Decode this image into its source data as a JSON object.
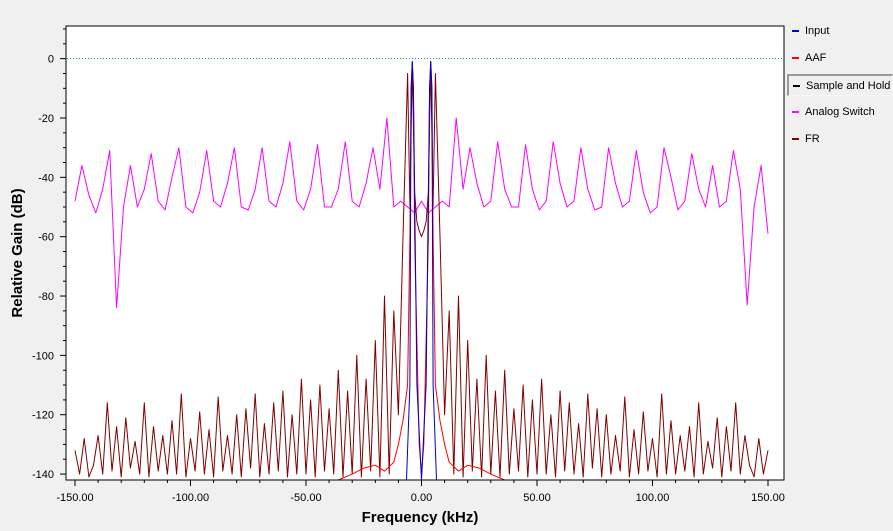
{
  "chart_data": {
    "type": "line",
    "xlabel": "Frequency (kHz)",
    "ylabel": "Relative Gain (dB)",
    "xlim": [
      -150,
      150
    ],
    "ylim": [
      -142,
      11
    ],
    "x_ticks": [
      -150,
      -100,
      -50,
      0,
      50,
      100,
      150
    ],
    "x_tick_labels": [
      "-150.00",
      "-100.00",
      "-50.00",
      "0.00",
      "50.00",
      "100.00",
      "150.00"
    ],
    "y_ticks": [
      0,
      -20,
      -40,
      -60,
      -80,
      -100,
      -120,
      -140
    ],
    "y_tick_labels": [
      "0",
      "-20",
      "-40",
      "-60",
      "-80",
      "-100",
      "-120",
      "-140"
    ],
    "reference_line": {
      "y": 0,
      "color": "#008080",
      "style": "dotted"
    },
    "grid": false,
    "legend_position": "right",
    "series": [
      {
        "name": "Input",
        "color": "#0000c8",
        "x": [
          -150,
          -6.5,
          -5,
          -4.5,
          -4,
          -3.5,
          -2,
          0,
          2,
          3.5,
          4,
          4.5,
          5,
          6.5,
          150
        ],
        "y": [
          -145,
          -145,
          -110,
          -10,
          -1,
          -10,
          -110,
          -145,
          -110,
          -10,
          -1,
          -10,
          -110,
          -145,
          -145
        ]
      },
      {
        "name": "AAF",
        "color": "#ff0000",
        "x": [
          -150,
          -36,
          -30,
          -25,
          -20,
          -16,
          -12,
          -10,
          -8,
          -6,
          -5,
          -4.5,
          -4,
          -3.5,
          -3,
          -1,
          0,
          1,
          3,
          3.5,
          4,
          4.5,
          5,
          6,
          8,
          10,
          12,
          16,
          20,
          25,
          30,
          36,
          150
        ],
        "y": [
          -145,
          -145,
          -140,
          -138,
          -137,
          -139,
          -136,
          -130,
          -122,
          -110,
          -60,
          -10,
          -1,
          -10,
          -60,
          -130,
          -140,
          -130,
          -60,
          -10,
          -1,
          -10,
          -60,
          -110,
          -122,
          -130,
          -136,
          -139,
          -137,
          -138,
          -140,
          -145,
          -145
        ]
      },
      {
        "name": "Sample and Hold",
        "color": "#000000",
        "x": [
          -150,
          150
        ],
        "y": [
          -145,
          -145
        ]
      },
      {
        "name": "Analog Switch",
        "color": "#ff00ff",
        "x": [
          -150,
          -147,
          -144,
          -141,
          -138,
          -135,
          -132,
          -129,
          -126,
          -123,
          -120,
          -117,
          -114,
          -111,
          -108,
          -105,
          -102,
          -99,
          -96,
          -93,
          -90,
          -87,
          -84,
          -81,
          -78,
          -75,
          -72,
          -69,
          -66,
          -63,
          -60,
          -57,
          -54,
          -51,
          -48,
          -45,
          -42,
          -39,
          -36,
          -33,
          -30,
          -27,
          -24,
          -21,
          -18,
          -15,
          -12,
          -9,
          -6,
          -3,
          0,
          3,
          6,
          9,
          12,
          15,
          18,
          21,
          24,
          27,
          30,
          33,
          36,
          39,
          42,
          45,
          48,
          51,
          54,
          57,
          60,
          63,
          66,
          69,
          72,
          75,
          78,
          81,
          84,
          87,
          90,
          93,
          96,
          99,
          102,
          105,
          108,
          111,
          114,
          117,
          120,
          123,
          126,
          129,
          132,
          135,
          138,
          141,
          144,
          147,
          150
        ],
        "y": [
          -48,
          -36,
          -46,
          -52,
          -44,
          -31,
          -84,
          -50,
          -36,
          -50,
          -44,
          -32,
          -48,
          -51,
          -40,
          -30,
          -50,
          -52,
          -45,
          -31,
          -48,
          -50,
          -42,
          -30,
          -50,
          -51,
          -44,
          -30,
          -48,
          -50,
          -42,
          -28,
          -48,
          -51,
          -44,
          -29,
          -50,
          -50,
          -44,
          -28,
          -48,
          -50,
          -42,
          -30,
          -44,
          -20,
          -50,
          -48,
          -50,
          -52,
          -48,
          -52,
          -50,
          -48,
          -50,
          -20,
          -44,
          -30,
          -42,
          -50,
          -48,
          -28,
          -44,
          -50,
          -50,
          -29,
          -44,
          -51,
          -48,
          -28,
          -42,
          -50,
          -48,
          -30,
          -44,
          -51,
          -50,
          -30,
          -42,
          -50,
          -48,
          -31,
          -45,
          -52,
          -50,
          -30,
          -40,
          -51,
          -48,
          -32,
          -44,
          -50,
          -36,
          -50,
          -48,
          -31,
          -44,
          -83,
          -50,
          -36,
          -59
        ]
      },
      {
        "name": "FR",
        "color": "#800000",
        "x": [
          -150,
          -148,
          -146,
          -144,
          -142,
          -140,
          -138,
          -136,
          -134,
          -132,
          -130,
          -128,
          -126,
          -124,
          -122,
          -120,
          -118,
          -116,
          -114,
          -112,
          -110,
          -108,
          -106,
          -104,
          -102,
          -100,
          -98,
          -96,
          -94,
          -92,
          -90,
          -88,
          -86,
          -84,
          -82,
          -80,
          -78,
          -76,
          -74,
          -72,
          -70,
          -68,
          -66,
          -64,
          -62,
          -60,
          -58,
          -56,
          -54,
          -52,
          -50,
          -48,
          -46,
          -44,
          -42,
          -40,
          -38,
          -36,
          -34,
          -32,
          -30,
          -28,
          -26,
          -24,
          -22,
          -20,
          -18,
          -16,
          -14,
          -12,
          -10,
          -8,
          -6,
          -5,
          -4,
          -3,
          -2,
          -1,
          0,
          1,
          2,
          3,
          4,
          5,
          6,
          8,
          10,
          12,
          14,
          16,
          18,
          20,
          22,
          24,
          26,
          28,
          30,
          32,
          34,
          36,
          38,
          40,
          42,
          44,
          46,
          48,
          50,
          52,
          54,
          56,
          58,
          60,
          62,
          64,
          66,
          68,
          70,
          72,
          74,
          76,
          78,
          80,
          82,
          84,
          86,
          88,
          90,
          92,
          94,
          96,
          98,
          100,
          102,
          104,
          106,
          108,
          110,
          112,
          114,
          116,
          118,
          120,
          122,
          124,
          126,
          128,
          130,
          132,
          134,
          136,
          138,
          140,
          142,
          144,
          146,
          148,
          150
        ],
        "y": [
          -132,
          -140,
          -128,
          -141,
          -137,
          -127,
          -140,
          -116,
          -139,
          -124,
          -141,
          -121,
          -138,
          -129,
          -140,
          -116,
          -141,
          -124,
          -139,
          -127,
          -140,
          -122,
          -140,
          -113,
          -141,
          -128,
          -139,
          -119,
          -140,
          -125,
          -141,
          -114,
          -139,
          -127,
          -140,
          -120,
          -141,
          -118,
          -138,
          -113,
          -141,
          -123,
          -140,
          -116,
          -139,
          -112,
          -141,
          -120,
          -140,
          -108,
          -140,
          -115,
          -141,
          -110,
          -139,
          -118,
          -140,
          -105,
          -141,
          -112,
          -140,
          -100,
          -141,
          -108,
          -139,
          -95,
          -141,
          -80,
          -140,
          -85,
          -120,
          -60,
          -5,
          -50,
          -1,
          -45,
          -55,
          -58,
          -60,
          -58,
          -55,
          -45,
          -1,
          -50,
          -5,
          -60,
          -120,
          -85,
          -140,
          -80,
          -141,
          -95,
          -139,
          -108,
          -141,
          -100,
          -140,
          -112,
          -141,
          -105,
          -140,
          -118,
          -139,
          -110,
          -141,
          -115,
          -140,
          -108,
          -140,
          -120,
          -141,
          -112,
          -139,
          -116,
          -140,
          -123,
          -141,
          -113,
          -138,
          -118,
          -141,
          -120,
          -140,
          -127,
          -139,
          -114,
          -141,
          -125,
          -140,
          -119,
          -139,
          -128,
          -141,
          -113,
          -140,
          -122,
          -140,
          -127,
          -139,
          -124,
          -141,
          -116,
          -140,
          -129,
          -138,
          -121,
          -141,
          -124,
          -139,
          -116,
          -140,
          -127,
          -137,
          -141,
          -128,
          -140,
          -132
        ]
      }
    ]
  }
}
